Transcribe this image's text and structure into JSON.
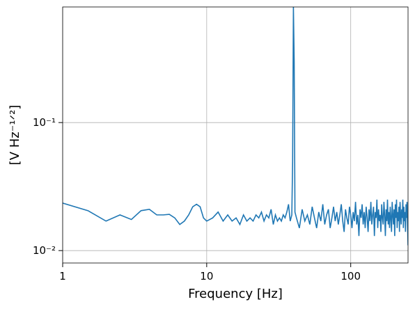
{
  "chart_data": {
    "type": "line",
    "xlabel": "Frequency [Hz]",
    "ylabel": "[V Hz⁻¹ᐟ²]",
    "xscale": "log",
    "yscale": "log",
    "grid": true,
    "xlim": [
      1,
      250
    ],
    "ylim": [
      0.008,
      0.8
    ],
    "xticks": [
      1,
      10,
      100
    ],
    "yticks": [
      {
        "value": 0.01,
        "label": "10⁻²"
      },
      {
        "value": 0.1,
        "label": "10⁻¹"
      }
    ],
    "series": [
      {
        "color": "#1f77b4",
        "x": [
          1,
          1.5,
          2,
          2.5,
          3,
          3.5,
          4,
          4.5,
          5,
          5.5,
          6,
          6.5,
          7,
          7.5,
          8,
          8.5,
          9,
          9.5,
          10,
          11,
          12,
          13,
          14,
          15,
          16,
          17,
          18,
          19,
          20,
          21,
          22,
          23,
          24,
          25,
          26,
          27,
          28,
          29,
          30,
          31,
          32,
          33,
          34,
          35,
          36,
          37,
          38,
          39,
          39.5,
          40,
          40.5,
          41,
          42,
          44,
          46,
          48,
          50,
          52,
          54,
          56,
          58,
          60,
          62,
          64,
          66,
          68,
          70,
          72,
          74,
          76,
          78,
          80,
          82,
          84,
          86,
          88,
          90,
          92,
          94,
          96,
          98,
          100,
          102,
          104,
          106,
          108,
          110,
          112,
          114,
          116,
          118,
          120,
          122,
          124,
          126,
          128,
          130,
          132,
          134,
          136,
          138,
          140,
          142,
          144,
          146,
          148,
          150,
          152,
          154,
          156,
          158,
          160,
          162,
          164,
          166,
          168,
          170,
          172,
          174,
          176,
          178,
          180,
          182,
          184,
          186,
          188,
          190,
          192,
          194,
          196,
          198,
          200,
          202,
          204,
          206,
          208,
          210,
          212,
          214,
          216,
          218,
          220,
          222,
          224,
          226,
          228,
          230,
          232,
          234,
          236,
          238,
          240,
          242,
          244,
          246,
          248,
          250
        ],
        "values": [
          0.0235,
          0.0205,
          0.017,
          0.019,
          0.0175,
          0.0205,
          0.021,
          0.019,
          0.019,
          0.0192,
          0.018,
          0.016,
          0.017,
          0.019,
          0.022,
          0.023,
          0.022,
          0.018,
          0.017,
          0.018,
          0.02,
          0.017,
          0.019,
          0.017,
          0.018,
          0.016,
          0.019,
          0.017,
          0.018,
          0.017,
          0.019,
          0.018,
          0.02,
          0.017,
          0.019,
          0.018,
          0.021,
          0.016,
          0.019,
          0.017,
          0.018,
          0.017,
          0.019,
          0.018,
          0.02,
          0.023,
          0.017,
          0.019,
          0.05,
          0.8,
          0.3,
          0.02,
          0.018,
          0.015,
          0.021,
          0.017,
          0.019,
          0.016,
          0.022,
          0.018,
          0.015,
          0.02,
          0.017,
          0.023,
          0.016,
          0.019,
          0.021,
          0.015,
          0.018,
          0.022,
          0.017,
          0.02,
          0.016,
          0.019,
          0.023,
          0.017,
          0.014,
          0.021,
          0.018,
          0.016,
          0.022,
          0.019,
          0.015,
          0.02,
          0.017,
          0.024,
          0.016,
          0.019,
          0.013,
          0.021,
          0.018,
          0.023,
          0.016,
          0.02,
          0.015,
          0.022,
          0.018,
          0.014,
          0.021,
          0.017,
          0.024,
          0.016,
          0.019,
          0.022,
          0.013,
          0.02,
          0.018,
          0.025,
          0.015,
          0.021,
          0.017,
          0.019,
          0.014,
          0.023,
          0.018,
          0.016,
          0.024,
          0.019,
          0.013,
          0.021,
          0.017,
          0.025,
          0.016,
          0.02,
          0.015,
          0.022,
          0.018,
          0.014,
          0.024,
          0.019,
          0.016,
          0.021,
          0.013,
          0.023,
          0.018,
          0.025,
          0.015,
          0.02,
          0.017,
          0.022,
          0.014,
          0.024,
          0.019,
          0.016,
          0.021,
          0.018,
          0.025,
          0.015,
          0.022,
          0.017,
          0.02,
          0.014,
          0.023,
          0.018,
          0.024,
          0.016,
          0.011
        ]
      }
    ]
  }
}
